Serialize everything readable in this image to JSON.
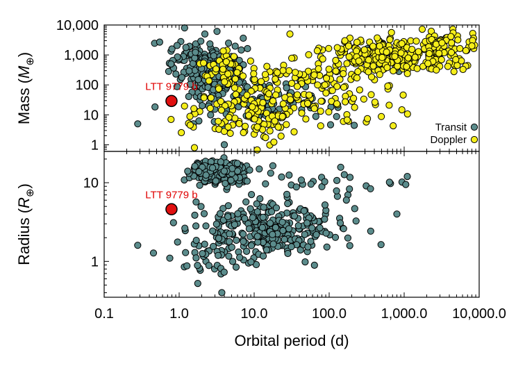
{
  "chart_data": [
    {
      "panel": "top",
      "type": "scatter",
      "xscale": "log",
      "yscale": "log",
      "xlim": [
        0.1,
        10000
      ],
      "ylim": [
        0.6,
        10000
      ],
      "ylabel_prefix": "Mass (",
      "ylabel_symbol": "M",
      "ylabel_sub": "⊕",
      "ylabel_suffix": ")",
      "yticks": [
        {
          "value": 1,
          "label": "1"
        },
        {
          "value": 10,
          "label": "10"
        },
        {
          "value": 100,
          "label": "100"
        },
        {
          "value": 1000,
          "label": "1,000"
        },
        {
          "value": 10000,
          "label": "10,000"
        }
      ],
      "legend": [
        {
          "label": "Transit",
          "color": "#5b8c8c"
        },
        {
          "label": "Doppler",
          "color": "#f5ee1a"
        }
      ],
      "legend_position": "bottom-right",
      "highlight": {
        "label": "LTT 9779 b",
        "x": 0.79,
        "y": 29,
        "color": "#e01010"
      },
      "series": [
        {
          "name": "Transit",
          "color": "#5b8c8c",
          "clusters": [
            {
              "x": 3.0,
              "y": 300,
              "sx": 0.2,
              "sy": 0.35,
              "n": 220
            },
            {
              "x": 1.5,
              "y": 700,
              "sx": 0.18,
              "sy": 0.3,
              "n": 45
            },
            {
              "x": 6.0,
              "y": 30,
              "sx": 0.35,
              "sy": 0.5,
              "n": 70
            },
            {
              "x": 25,
              "y": 25,
              "sx": 0.45,
              "sy": 0.5,
              "n": 45
            },
            {
              "x": 450,
              "y": 600,
              "sx": 0.25,
              "sy": 0.25,
              "n": 6
            }
          ],
          "points": [
            {
              "x": 0.28,
              "y": 5
            },
            {
              "x": 1.18,
              "y": 8000
            },
            {
              "x": 4.0,
              "y": 1.0
            },
            {
              "x": 0.78,
              "y": 500
            },
            {
              "x": 2.2,
              "y": 5000
            }
          ]
        },
        {
          "name": "Doppler",
          "color": "#f5ee1a",
          "clusters": [
            {
              "x": 600,
              "y": 900,
              "sx": 0.4,
              "sy": 0.3,
              "n": 250
            },
            {
              "x": 4000,
              "y": 1500,
              "sx": 0.25,
              "sy": 0.3,
              "n": 80
            },
            {
              "x": 40,
              "y": 150,
              "sx": 0.5,
              "sy": 0.4,
              "n": 90
            },
            {
              "x": 8,
              "y": 10,
              "sx": 0.4,
              "sy": 0.45,
              "n": 120
            },
            {
              "x": 3.5,
              "y": 250,
              "sx": 0.15,
              "sy": 0.3,
              "n": 45
            },
            {
              "x": 200,
              "y": 20,
              "sx": 0.4,
              "sy": 0.35,
              "n": 40
            }
          ],
          "points": [
            {
              "x": 0.78,
              "y": 7
            },
            {
              "x": 1.6,
              "y": 0.8
            },
            {
              "x": 30,
              "y": 5000
            },
            {
              "x": 8000,
              "y": 2000
            }
          ]
        }
      ]
    },
    {
      "panel": "bottom",
      "type": "scatter",
      "xscale": "log",
      "yscale": "log",
      "xlim": [
        0.1,
        10000
      ],
      "ylim": [
        0.35,
        25
      ],
      "xlabel": "Orbital period (d)",
      "ylabel_prefix": "Radius (",
      "ylabel_symbol": "R",
      "ylabel_sub": "⊕",
      "ylabel_suffix": ")",
      "xticks": [
        {
          "value": 0.1,
          "label": "0.1"
        },
        {
          "value": 1,
          "label": "1.0"
        },
        {
          "value": 10,
          "label": "10.0"
        },
        {
          "value": 100,
          "label": "100.0"
        },
        {
          "value": 1000,
          "label": "1,000.0"
        },
        {
          "value": 10000,
          "label": "10,000.0"
        }
      ],
      "yticks": [
        {
          "value": 1,
          "label": "1"
        },
        {
          "value": 10,
          "label": "10"
        }
      ],
      "highlight": {
        "label": "LTT 9779 b",
        "x": 0.79,
        "y": 4.6,
        "color": "#e01010"
      },
      "series": [
        {
          "name": "Transit",
          "color": "#5b8c8c",
          "clusters": [
            {
              "x": 3.3,
              "y": 13.5,
              "sx": 0.2,
              "sy": 0.07,
              "n": 200
            },
            {
              "x": 15,
              "y": 2.5,
              "sx": 0.45,
              "sy": 0.18,
              "n": 280
            },
            {
              "x": 40,
              "y": 9,
              "sx": 0.5,
              "sy": 0.12,
              "n": 35
            },
            {
              "x": 3,
              "y": 1.1,
              "sx": 0.3,
              "sy": 0.12,
              "n": 40
            }
          ],
          "points": [
            {
              "x": 0.28,
              "y": 1.6
            },
            {
              "x": 1100,
              "y": 12
            },
            {
              "x": 1050,
              "y": 9.5
            },
            {
              "x": 3.7,
              "y": 0.4
            },
            {
              "x": 800,
              "y": 4.0
            },
            {
              "x": 0.75,
              "y": 1.1
            },
            {
              "x": 1.3,
              "y": 14
            }
          ]
        }
      ]
    }
  ]
}
